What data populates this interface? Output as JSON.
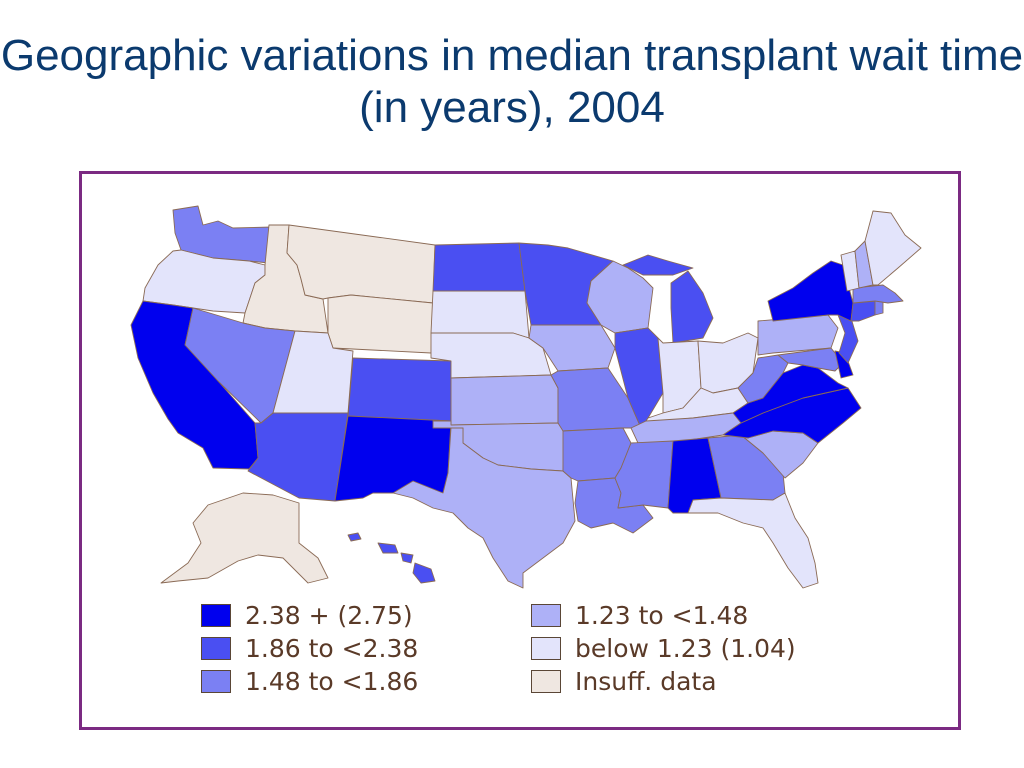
{
  "title": "Geographic variations in median transplant wait time (in years), 2004",
  "legend": {
    "items": [
      {
        "label": "2.38 + (2.75)",
        "color": "#0000ee"
      },
      {
        "label": "1.86 to <2.38",
        "color": "#4a4ff2"
      },
      {
        "label": "1.48 to <1.86",
        "color": "#7b80f3"
      },
      {
        "label": "1.23 to <1.48",
        "color": "#aeb1f7"
      },
      {
        "label": "below 1.23 (1.04)",
        "color": "#e3e4fb"
      },
      {
        "label": "Insuff. data",
        "color": "#efe7e1"
      }
    ]
  },
  "map_data": {
    "type": "choropleth",
    "region": "United States",
    "year": "2004",
    "states": {
      "WA": "1.48 to <1.86",
      "OR": "below 1.23 (1.04)",
      "CA": "2.38 + (2.75)",
      "ID": "Insuff. data",
      "MT": "Insuff. data",
      "WY": "Insuff. data",
      "NV": "1.48 to <1.86",
      "UT": "below 1.23 (1.04)",
      "AZ": "1.86 to <2.38",
      "CO": "1.86 to <2.38",
      "NM": "2.38 + (2.75)",
      "ND": "1.86 to <2.38",
      "SD": "below 1.23 (1.04)",
      "NE": "below 1.23 (1.04)",
      "KS": "1.23 to <1.48",
      "OK": "1.23 to <1.48",
      "TX": "1.23 to <1.48",
      "MN": "1.86 to <2.38",
      "IA": "1.23 to <1.48",
      "MO": "1.48 to <1.86",
      "AR": "1.48 to <1.86",
      "LA": "1.48 to <1.86",
      "WI": "1.23 to <1.48",
      "IL": "1.86 to <2.38",
      "MI": "1.86 to <2.38",
      "IN": "below 1.23 (1.04)",
      "OH": "below 1.23 (1.04)",
      "KY": "below 1.23 (1.04)",
      "TN": "1.23 to <1.48",
      "MS": "1.48 to <1.86",
      "AL": "2.38 + (2.75)",
      "GA": "1.48 to <1.86",
      "FL": "below 1.23 (1.04)",
      "SC": "1.23 to <1.48",
      "NC": "2.38 + (2.75)",
      "VA": "2.38 + (2.75)",
      "WV": "1.48 to <1.86",
      "MD": "1.48 to <1.86",
      "DE": "2.38 + (2.75)",
      "PA": "1.23 to <1.48",
      "NJ": "1.86 to <2.38",
      "NY": "2.38 + (2.75)",
      "CT": "1.86 to <2.38",
      "RI": "1.48 to <1.86",
      "MA": "1.48 to <1.86",
      "VT": "below 1.23 (1.04)",
      "NH": "1.23 to <1.48",
      "ME": "below 1.23 (1.04)",
      "AK": "Insuff. data",
      "HI": "1.86 to <2.38"
    }
  }
}
